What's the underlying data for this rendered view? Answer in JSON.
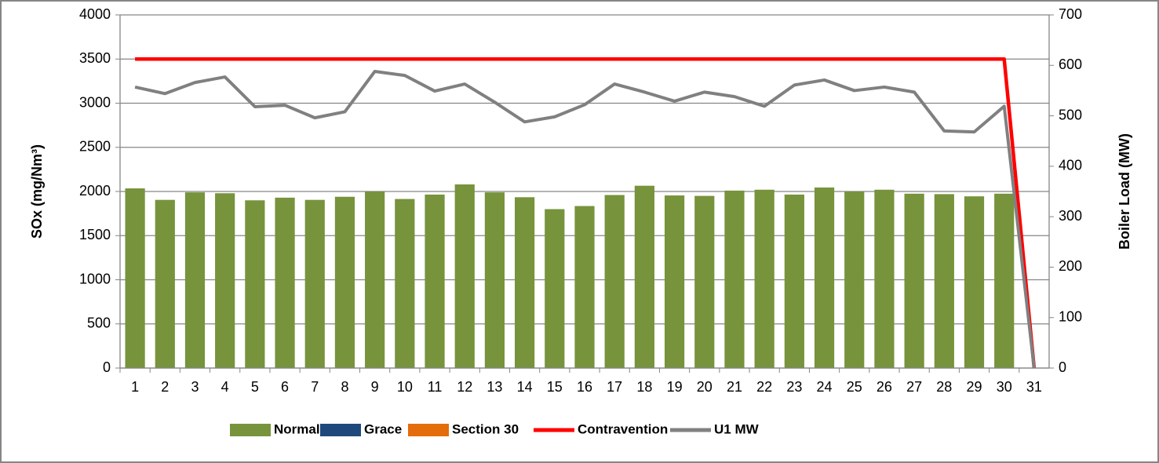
{
  "chart_data": {
    "type": "combo",
    "categories": [
      "1",
      "2",
      "3",
      "4",
      "5",
      "6",
      "7",
      "8",
      "9",
      "10",
      "11",
      "12",
      "13",
      "14",
      "15",
      "16",
      "17",
      "18",
      "19",
      "20",
      "21",
      "22",
      "23",
      "24",
      "25",
      "26",
      "27",
      "28",
      "29",
      "30",
      "31"
    ],
    "ylabel": "SOx (mg/Nm³)",
    "y2label": "Boiler Load (MW)",
    "ylim": [
      0,
      4000
    ],
    "yticks": [
      0,
      500,
      1000,
      1500,
      2000,
      2500,
      3000,
      3500,
      4000
    ],
    "y2lim": [
      0,
      700
    ],
    "y2ticks": [
      0,
      100,
      200,
      300,
      400,
      500,
      600,
      700
    ],
    "grid": true,
    "legend": "bottom",
    "series": [
      {
        "name": "Normal",
        "kind": "bar",
        "color": "#77933c",
        "values": [
          2035,
          1905,
          1990,
          1980,
          1900,
          1930,
          1905,
          1940,
          2000,
          1915,
          1965,
          2080,
          1990,
          1935,
          1800,
          1835,
          1960,
          2065,
          1955,
          1950,
          2010,
          2020,
          1965,
          2045,
          2000,
          2020,
          1975,
          1970,
          1945,
          1975,
          0
        ]
      },
      {
        "name": "Grace",
        "kind": "bar",
        "color": "#1f497d",
        "values": [
          0,
          0,
          0,
          0,
          0,
          0,
          0,
          0,
          0,
          0,
          0,
          0,
          0,
          0,
          0,
          0,
          0,
          0,
          0,
          0,
          0,
          0,
          0,
          0,
          0,
          0,
          0,
          0,
          0,
          0,
          0
        ]
      },
      {
        "name": "Section 30",
        "kind": "bar",
        "color": "#e46c0a",
        "values": [
          0,
          0,
          0,
          0,
          0,
          0,
          0,
          0,
          0,
          0,
          0,
          0,
          0,
          0,
          0,
          0,
          0,
          0,
          0,
          0,
          0,
          0,
          0,
          0,
          0,
          0,
          0,
          0,
          0,
          0,
          0
        ]
      },
      {
        "name": "Contravention",
        "kind": "line",
        "color": "#ff0000",
        "values": [
          3500,
          3500,
          3500,
          3500,
          3500,
          3500,
          3500,
          3500,
          3500,
          3500,
          3500,
          3500,
          3500,
          3500,
          3500,
          3500,
          3500,
          3500,
          3500,
          3500,
          3500,
          3500,
          3500,
          3500,
          3500,
          3500,
          3500,
          3500,
          3500,
          3500,
          0
        ]
      },
      {
        "name": "U1 MW",
        "kind": "line",
        "axis": "y2",
        "color": "#808080",
        "values": [
          557,
          544,
          566,
          577,
          518,
          521,
          496,
          508,
          588,
          580,
          549,
          563,
          527,
          488,
          498,
          522,
          563,
          547,
          529,
          547,
          538,
          519,
          561,
          571,
          550,
          557,
          547,
          470,
          468,
          519,
          0
        ]
      }
    ]
  }
}
